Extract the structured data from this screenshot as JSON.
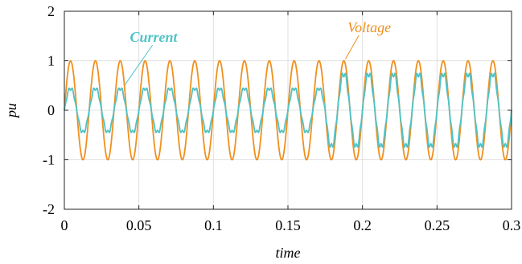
{
  "chart_data": {
    "type": "line",
    "xlabel": "time",
    "ylabel": "pu",
    "xlim": [
      0,
      0.3
    ],
    "ylim": [
      -2,
      2
    ],
    "grid": true,
    "x_ticks": [
      0,
      0.05,
      0.1,
      0.15,
      0.2,
      0.25,
      0.3
    ],
    "x_tick_labels": [
      "0",
      "0.05",
      "0.1",
      "0.15",
      "0.2",
      "0.25",
      "0.3"
    ],
    "y_ticks": [
      -2,
      -1,
      0,
      1,
      2
    ],
    "y_tick_labels": [
      "-2",
      "-1",
      "0",
      "1",
      "2"
    ],
    "frequency_hz": 60,
    "series": [
      {
        "name": "Voltage",
        "color": "#f0901e",
        "waveform": "sine",
        "segments": [
          {
            "t_start": 0,
            "t_end": 0.3,
            "amplitude": 1.0
          }
        ]
      },
      {
        "name": "Current",
        "color": "#4fc3c7",
        "waveform": "sine-ripple",
        "segments": [
          {
            "t_start": 0,
            "t_end": 0.175,
            "amplitude": 0.45
          },
          {
            "t_start": 0.175,
            "t_end": 0.3,
            "amplitude": 0.75
          }
        ]
      }
    ],
    "annotations": [
      {
        "text": "Current",
        "series": "Current",
        "bold": true,
        "at_x": 0.039
      },
      {
        "text": "Voltage",
        "series": "Voltage",
        "bold": false,
        "at_x": 0.188
      }
    ]
  }
}
